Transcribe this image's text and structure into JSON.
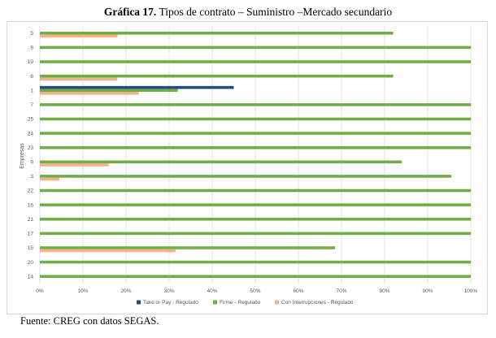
{
  "title": {
    "bold": "Gráfica 17.",
    "rest": " Tipos de contrato – Suministro –Mercado secundario"
  },
  "footer": "Fuente: CREG con datos SEGAS.",
  "colors": {
    "take_or_pay": "#1f4e79",
    "firme": "#70ad47",
    "interrupciones": "#f4b183",
    "grid": "#d9d9d9",
    "text": "#595959"
  },
  "chart_data": {
    "type": "bar",
    "orientation": "horizontal",
    "ylabel": "Empresas",
    "xlabel": "",
    "xlim": [
      0,
      1
    ],
    "xticks": [
      "0%",
      "10%",
      "20%",
      "30%",
      "40%",
      "50%",
      "60%",
      "70%",
      "80%",
      "90%",
      "100%"
    ],
    "grid": true,
    "legend_position": "bottom",
    "categories": [
      "5",
      "8",
      "19",
      "6",
      "1",
      "7",
      "25",
      "24",
      "23",
      "9",
      "3",
      "22",
      "16",
      "21",
      "17",
      "15",
      "20",
      "14"
    ],
    "series": [
      {
        "name": "Take or Pay - Regulado",
        "values": [
          0,
          0,
          0,
          0,
          0.45,
          0,
          0,
          0,
          0,
          0,
          0,
          0,
          0,
          0,
          0,
          0,
          0,
          0
        ]
      },
      {
        "name": "Firme - Regulado",
        "values": [
          0.82,
          1,
          1,
          0.82,
          0.32,
          1,
          1,
          1,
          1,
          0.84,
          0.955,
          1,
          1,
          1,
          1,
          0.685,
          1,
          1
        ]
      },
      {
        "name": "Con Interrupciones - Regulado",
        "values": [
          0.18,
          0,
          0,
          0.18,
          0.23,
          0,
          0,
          0,
          0,
          0.16,
          0.045,
          0,
          0,
          0,
          0,
          0.315,
          0,
          0
        ]
      }
    ]
  }
}
